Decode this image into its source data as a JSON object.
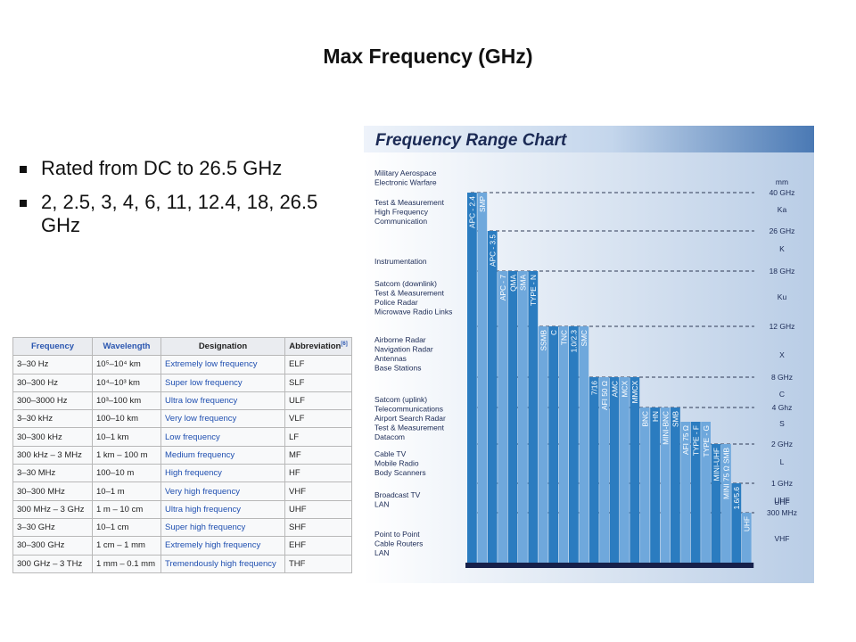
{
  "slide": {
    "title": "Max Frequency (GHz)",
    "bullets": [
      "Rated from DC to 26.5 GHz",
      "2, 2.5, 3, 4, 6, 11, 12.4, 18, 26.5 GHz"
    ]
  },
  "table": {
    "headers": [
      "Frequency",
      "Wavelength",
      "Designation",
      "Abbreviation"
    ],
    "header_note": "[6]",
    "rows": [
      {
        "frequency": "3–30 Hz",
        "wavelength": "10⁵–10⁴ km",
        "designation": "Extremely low frequency",
        "abbreviation": "ELF"
      },
      {
        "frequency": "30–300 Hz",
        "wavelength": "10⁴–10³ km",
        "designation": "Super low frequency",
        "abbreviation": "SLF"
      },
      {
        "frequency": "300–3000 Hz",
        "wavelength": "10³–100 km",
        "designation": "Ultra low frequency",
        "abbreviation": "ULF"
      },
      {
        "frequency": "3–30 kHz",
        "wavelength": "100–10 km",
        "designation": "Very low frequency",
        "abbreviation": "VLF"
      },
      {
        "frequency": "30–300 kHz",
        "wavelength": "10–1 km",
        "designation": "Low frequency",
        "abbreviation": "LF"
      },
      {
        "frequency": "300 kHz – 3 MHz",
        "wavelength": "1 km – 100 m",
        "designation": "Medium frequency",
        "abbreviation": "MF"
      },
      {
        "frequency": "3–30 MHz",
        "wavelength": "100–10 m",
        "designation": "High frequency",
        "abbreviation": "HF"
      },
      {
        "frequency": "30–300 MHz",
        "wavelength": "10–1 m",
        "designation": "Very high frequency",
        "abbreviation": "VHF"
      },
      {
        "frequency": "300 MHz – 3 GHz",
        "wavelength": "1 m – 10 cm",
        "designation": "Ultra high frequency",
        "abbreviation": "UHF"
      },
      {
        "frequency": "3–30 GHz",
        "wavelength": "10–1 cm",
        "designation": "Super high frequency",
        "abbreviation": "SHF"
      },
      {
        "frequency": "30–300 GHz",
        "wavelength": "1 cm – 1 mm",
        "designation": "Extremely high frequency",
        "abbreviation": "EHF"
      },
      {
        "frequency": "300 GHz – 3 THz",
        "wavelength": "1 mm – 0.1 mm",
        "designation": "Tremendously high frequency",
        "abbreviation": "THF"
      }
    ]
  },
  "chart_data": {
    "type": "bar",
    "title": "Frequency Range Chart",
    "colors": {
      "bar_dark": "#2b7cc0",
      "bar_light": "#6fa8dc",
      "header_band": "#4a79b4",
      "baseline": "#16204a",
      "text": "#1b2a55"
    },
    "frequency_levels": [
      {
        "label": "40 GHz",
        "unit_top": "mm"
      },
      {
        "label": "26 GHz"
      },
      {
        "label": "18 GHz"
      },
      {
        "label": "12 GHz"
      },
      {
        "label": "8 GHz"
      },
      {
        "label": "4 Ghz"
      },
      {
        "label": "2 GHz"
      },
      {
        "label": "1 GHz"
      },
      {
        "label": "300 MHz",
        "unit_top": "UHF"
      }
    ],
    "bands": [
      "Ka",
      "K",
      "Ku",
      "X",
      "C",
      "S",
      "L",
      "UHF",
      "VHF"
    ],
    "applications": [
      "Military Aerospace\nElectronic Warfare",
      "Test & Measurement\nHigh Frequency\nCommunication",
      "Instrumentation",
      "Satcom (downlink)\nTest & Measurement\nPolice Radar\nMicrowave Radio Links",
      "Airborne Radar\nNavigation Radar\nAntennas\nBase Stations",
      "Satcom (uplink)\nTelecommunications\nAirport Search Radar\nTest & Measurement\nDatacom",
      "Cable TV\nMobile Radio\nBody Scanners",
      "Broadcast TV\nLAN",
      "Point to Point\nCable Routers\nLAN"
    ],
    "connectors": [
      {
        "name": "APC - 2.4",
        "max": "40 GHz"
      },
      {
        "name": "SMP",
        "max": "40 GHz"
      },
      {
        "name": "APC - 3.5",
        "max": "26 GHz"
      },
      {
        "name": "APC - 7",
        "max": "18 GHz"
      },
      {
        "name": "QMA",
        "max": "18 GHz"
      },
      {
        "name": "SMA",
        "max": "18 GHz"
      },
      {
        "name": "TYPE - N",
        "max": "18 GHz"
      },
      {
        "name": "SSMB",
        "max": "12 GHz"
      },
      {
        "name": "C",
        "max": "12 GHz"
      },
      {
        "name": "TNC",
        "max": "12 GHz"
      },
      {
        "name": "1.0/2.3",
        "max": "12 GHz"
      },
      {
        "name": "SMC",
        "max": "12 GHz"
      },
      {
        "name": "7/16",
        "max": "8 GHz"
      },
      {
        "name": "AFI 50 Ω",
        "max": "8 GHz"
      },
      {
        "name": "AMC",
        "max": "8 GHz"
      },
      {
        "name": "MCX",
        "max": "8 GHz"
      },
      {
        "name": "MMCX",
        "max": "8 GHz"
      },
      {
        "name": "BNC",
        "max": "4 Ghz"
      },
      {
        "name": "HN",
        "max": "4 Ghz"
      },
      {
        "name": "MINI-BNC",
        "max": "4 Ghz"
      },
      {
        "name": "SMB",
        "max": "4 Ghz"
      },
      {
        "name": "AFI 75 Ω",
        "max": "3 GHz"
      },
      {
        "name": "TYPE - F",
        "max": "3 GHz"
      },
      {
        "name": "TYPE - G",
        "max": "3 GHz"
      },
      {
        "name": "MINI-UHF",
        "max": "2 GHz"
      },
      {
        "name": "MINI 75 Ω SMB",
        "max": "2 GHz"
      },
      {
        "name": "1.6/5.6",
        "max": "1 GHz"
      },
      {
        "name": "UHF",
        "max": "300 MHz"
      }
    ]
  }
}
